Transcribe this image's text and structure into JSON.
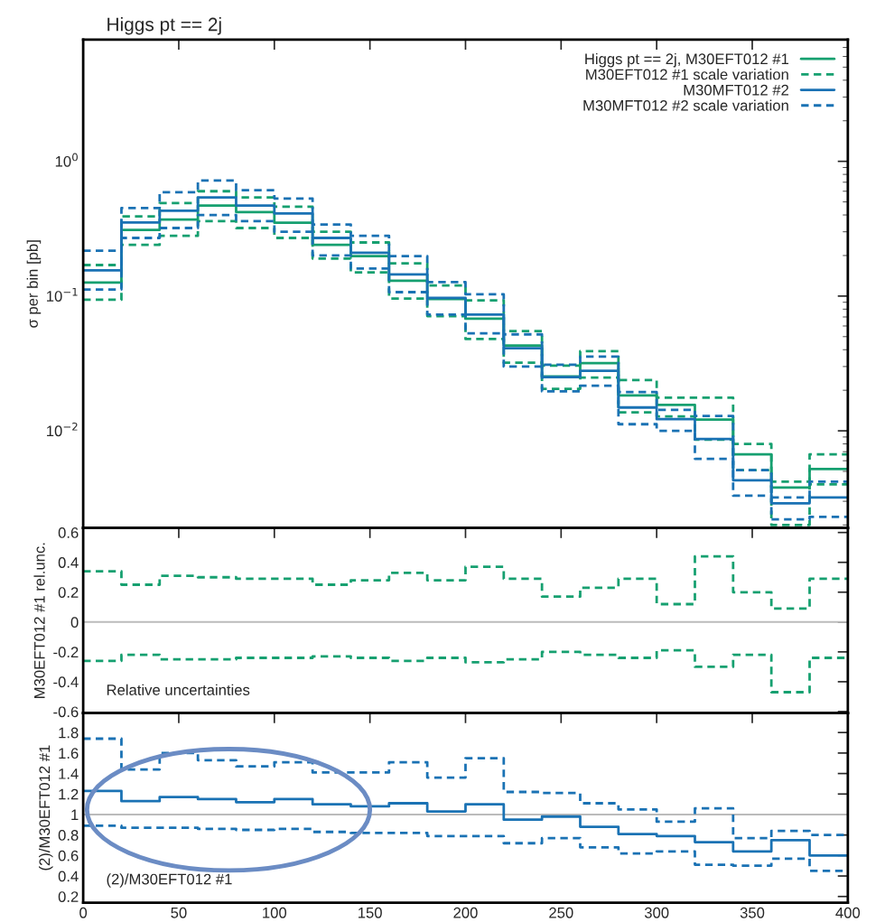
{
  "chart_data": [
    {
      "type": "step",
      "subtitle": "Higgs pt == 2j",
      "ylabel": "σ per bin [pb]",
      "log": "y",
      "legend": "top right",
      "tick_labels": "y",
      "grid": false,
      "x": [
        0,
        20,
        40,
        60,
        80,
        100,
        120,
        140,
        160,
        180,
        200,
        220,
        240,
        260,
        280,
        300,
        320,
        340,
        360,
        380,
        400
      ],
      "xlim": [
        0,
        400
      ],
      "xticks": [
        {
          "value": 0,
          "label": null
        },
        {
          "value": 50,
          "label": null
        },
        {
          "value": 100,
          "label": null
        },
        {
          "value": 150,
          "label": null
        },
        {
          "value": 200,
          "label": null
        },
        {
          "value": 250,
          "label": null
        },
        {
          "value": 300,
          "label": null
        },
        {
          "value": 350,
          "label": null
        },
        {
          "value": 400,
          "label": null
        }
      ],
      "ylim": [
        0.0019,
        8
      ],
      "yticks": [
        {
          "value": 0.01,
          "label": "10$^{−2}$"
        },
        {
          "value": 0.1,
          "label": "10$^{−1}$"
        },
        {
          "value": 1,
          "label": "10$^{0}$"
        }
      ],
      "series": [
        {
          "name": "Higgs pt == 2j, M30EFT012 #1",
          "color": "#16a070",
          "line_style": "solid",
          "values": [
            0.126,
            0.31,
            0.37,
            0.47,
            0.42,
            0.35,
            0.24,
            0.198,
            0.13,
            0.095,
            0.068,
            0.043,
            0.0253,
            0.0318,
            0.0183,
            0.0156,
            0.0121,
            0.0067,
            0.0038,
            0.0052,
            0.0052
          ]
        },
        {
          "name": "M30EFT012 #1 scale variation",
          "color": "#16a070",
          "line_style": "dashed",
          "values": [
            0.17,
            0.39,
            0.49,
            0.6,
            0.54,
            0.46,
            0.3,
            0.25,
            0.175,
            0.12,
            0.093,
            0.055,
            0.0305,
            0.039,
            0.0238,
            0.0176,
            0.0176,
            0.008,
            0.0042,
            0.0067,
            0.0067
          ]
        },
        {
          "color": "#16a070",
          "line_style": "dashed",
          "values": [
            0.094,
            0.24,
            0.28,
            0.36,
            0.32,
            0.27,
            0.19,
            0.15,
            0.096,
            0.071,
            0.048,
            0.032,
            0.0205,
            0.0248,
            0.0137,
            0.0128,
            0.0086,
            0.0051,
            0.002,
            0.004,
            0.004
          ]
        },
        {
          "name": "M30MFT012 #2",
          "color": "#1a72b4",
          "line_style": "solid",
          "values": [
            0.155,
            0.352,
            0.43,
            0.54,
            0.47,
            0.41,
            0.27,
            0.21,
            0.145,
            0.097,
            0.073,
            0.041,
            0.025,
            0.0279,
            0.0149,
            0.0122,
            0.0087,
            0.0043,
            0.0029,
            0.0032,
            0.0032
          ]
        },
        {
          "name": "M30MFT012 #2 scale variation",
          "color": "#1a72b4",
          "line_style": "dashed",
          "values": [
            0.217,
            0.45,
            0.59,
            0.72,
            0.61,
            0.53,
            0.34,
            0.28,
            0.198,
            0.127,
            0.103,
            0.052,
            0.031,
            0.0355,
            0.0194,
            0.0143,
            0.0129,
            0.0051,
            0.0032,
            0.0042,
            0.0042
          ]
        },
        {
          "color": "#1a72b4",
          "line_style": "dashed",
          "values": [
            0.112,
            0.27,
            0.32,
            0.4,
            0.36,
            0.3,
            0.2,
            0.16,
            0.107,
            0.073,
            0.053,
            0.03,
            0.0196,
            0.0216,
            0.0112,
            0.01,
            0.0062,
            0.0033,
            0.0022,
            0.0023,
            0.0023
          ]
        }
      ]
    },
    {
      "type": "step",
      "ylabel": "M30EFT012 #1 rel.unc.",
      "tick_labels": "y",
      "grid": false,
      "annotations": [
        "Relative uncertainties"
      ],
      "x": [
        0,
        20,
        40,
        60,
        80,
        100,
        120,
        140,
        160,
        180,
        200,
        220,
        240,
        260,
        280,
        300,
        320,
        340,
        360,
        380,
        400
      ],
      "xlim": [
        0,
        400
      ],
      "xticks": [
        {
          "value": 0,
          "label": null
        },
        {
          "value": 50,
          "label": null
        },
        {
          "value": 100,
          "label": null
        },
        {
          "value": 150,
          "label": null
        },
        {
          "value": 200,
          "label": null
        },
        {
          "value": 250,
          "label": null
        },
        {
          "value": 300,
          "label": null
        },
        {
          "value": 350,
          "label": null
        },
        {
          "value": 400,
          "label": null
        }
      ],
      "ylim": [
        -0.61,
        0.63
      ],
      "yticks": [
        -0.6,
        -0.4,
        -0.2,
        0,
        0.2,
        0.4,
        0.6
      ],
      "ref_lines": [
        {
          "axis": "y",
          "value": 0,
          "color": "#bbbbbb"
        }
      ],
      "series": [
        {
          "color": "#16a070",
          "line_style": "dashed",
          "values": [
            0.34,
            0.25,
            0.31,
            0.3,
            0.29,
            0.29,
            0.25,
            0.28,
            0.33,
            0.28,
            0.37,
            0.29,
            0.17,
            0.23,
            0.29,
            0.12,
            0.44,
            0.2,
            0.09,
            0.29,
            0.29
          ]
        },
        {
          "color": "#16a070",
          "line_style": "dashed",
          "values": [
            -0.26,
            -0.22,
            -0.25,
            -0.25,
            -0.24,
            -0.24,
            -0.23,
            -0.24,
            -0.26,
            -0.24,
            -0.27,
            -0.25,
            -0.2,
            -0.22,
            -0.24,
            -0.19,
            -0.3,
            -0.22,
            -0.47,
            -0.24,
            -0.24
          ]
        }
      ]
    },
    {
      "type": "step",
      "ylabel": "(2)/M30EFT012 #1",
      "grid": false,
      "annotations": [
        "(2)/M30EFT012 #1"
      ],
      "x": [
        0,
        20,
        40,
        60,
        80,
        100,
        120,
        140,
        160,
        180,
        200,
        220,
        240,
        260,
        280,
        300,
        320,
        340,
        360,
        380,
        400
      ],
      "xlim": [
        0,
        400
      ],
      "xticks": [
        0,
        50,
        100,
        150,
        200,
        250,
        300,
        350,
        400
      ],
      "ylim": [
        0.14,
        1.99
      ],
      "yticks": [
        0.2,
        0.4,
        0.6,
        0.8,
        1,
        1.2,
        1.4,
        1.6,
        1.8
      ],
      "ref_lines": [
        {
          "axis": "y",
          "value": 1,
          "color": "#bbbbbb"
        }
      ],
      "series": [
        {
          "color": "#1a72b4",
          "line_style": "solid",
          "values": [
            1.23,
            1.13,
            1.17,
            1.15,
            1.12,
            1.15,
            1.1,
            1.08,
            1.11,
            1.03,
            1.1,
            0.95,
            0.98,
            0.88,
            0.81,
            0.79,
            0.73,
            0.64,
            0.75,
            0.6,
            0.6
          ]
        },
        {
          "color": "#1a72b4",
          "line_style": "dashed",
          "values": [
            1.74,
            1.44,
            1.6,
            1.53,
            1.47,
            1.51,
            1.41,
            1.41,
            1.51,
            1.36,
            1.55,
            1.22,
            1.21,
            1.11,
            1.05,
            0.93,
            1.06,
            0.77,
            0.84,
            0.8,
            0.8
          ]
        },
        {
          "color": "#1a72b4",
          "line_style": "dashed",
          "values": [
            0.89,
            0.87,
            0.87,
            0.86,
            0.85,
            0.86,
            0.83,
            0.82,
            0.82,
            0.79,
            0.79,
            0.72,
            0.77,
            0.68,
            0.62,
            0.64,
            0.51,
            0.5,
            0.57,
            0.45,
            0.45
          ]
        }
      ]
    }
  ]
}
